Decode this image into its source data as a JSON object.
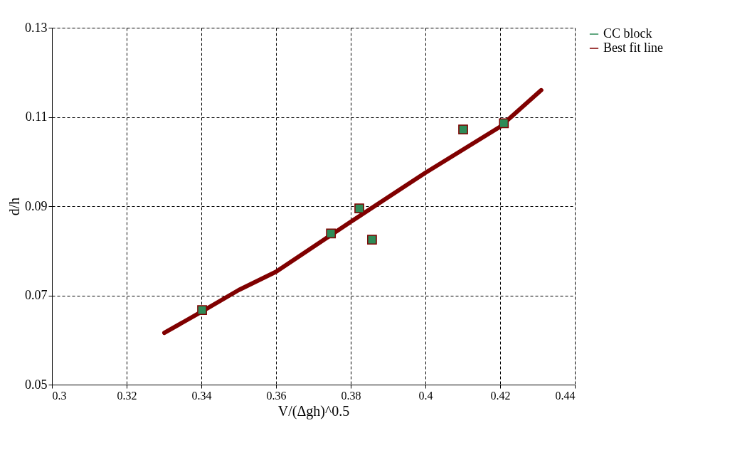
{
  "chart_data": {
    "type": "scatter",
    "xlabel": "V/(Δgh)^0.5",
    "ylabel": "d/h",
    "xlim": [
      0.3,
      0.44
    ],
    "xticks": [
      0.3,
      0.32,
      0.34,
      0.36,
      0.38,
      0.4,
      0.42,
      0.44
    ],
    "ylim": [
      0.05,
      0.13
    ],
    "yticks": [
      0.05,
      0.07,
      0.09,
      0.11,
      0.13
    ],
    "grid": true,
    "legend": "top right",
    "series": [
      {
        "name": "CC block",
        "marker": "square",
        "color": "#2e8b57",
        "x": [
          0.3402,
          0.3747,
          0.3823,
          0.3857,
          0.4101,
          0.421
        ],
        "values": [
          0.0667,
          0.0839,
          0.0895,
          0.0825,
          0.1072,
          0.1086
        ]
      },
      {
        "name": "Best fit line",
        "type": "line",
        "color": "#800000",
        "x": [
          0.3301,
          0.34,
          0.35,
          0.36,
          0.38,
          0.4,
          0.42,
          0.431
        ],
        "values": [
          0.0616,
          0.0663,
          0.0712,
          0.0753,
          0.0865,
          0.0975,
          0.1078,
          0.116
        ]
      }
    ]
  }
}
